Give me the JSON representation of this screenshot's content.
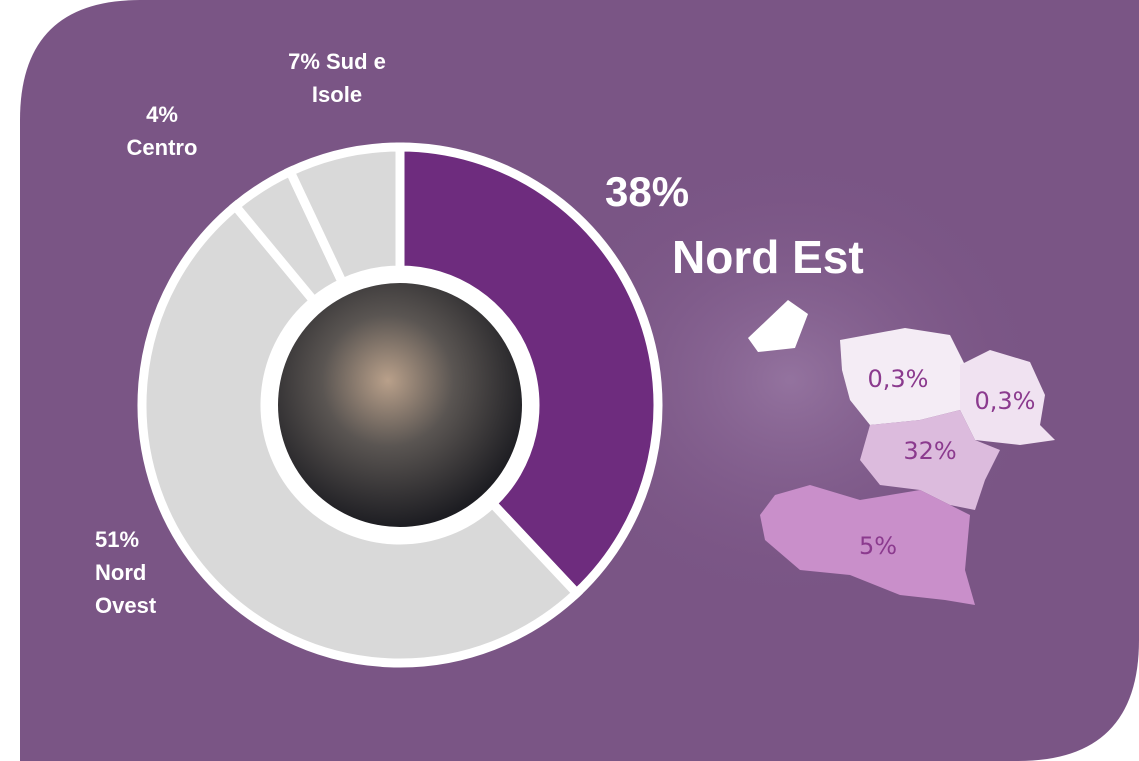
{
  "chart_data": {
    "type": "donut",
    "categories": [
      "Nord Est",
      "Nord Ovest",
      "Centro",
      "Sud e Isole"
    ],
    "values": [
      38,
      51,
      4,
      7
    ],
    "value_labels": [
      "38%",
      "51%",
      "4%",
      "7%"
    ],
    "colors": [
      "#6e2c7e",
      "#d9d9d9",
      "#d9d9d9",
      "#d9d9d9"
    ],
    "regions": {
      "values": [
        0.3,
        0.3,
        32,
        5
      ],
      "value_labels": [
        "0,3%",
        "0,3%",
        "32%",
        "5%"
      ]
    }
  }
}
